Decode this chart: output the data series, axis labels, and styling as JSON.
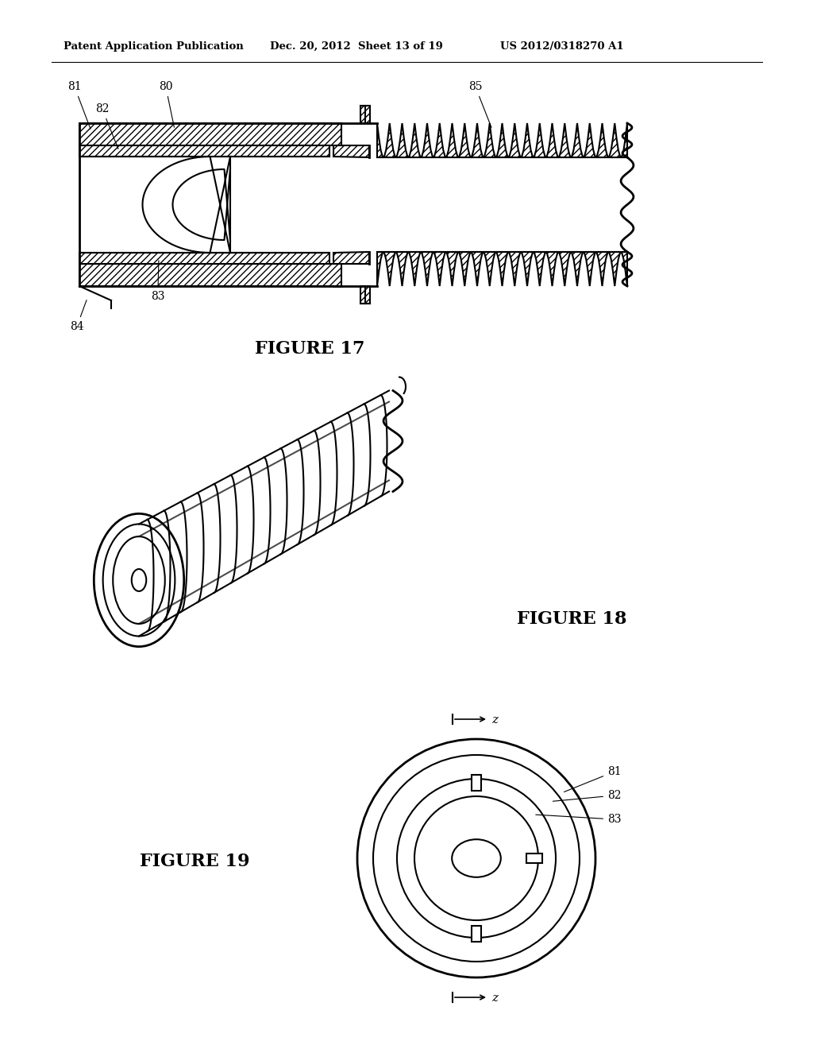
{
  "header_left": "Patent Application Publication",
  "header_mid": "Dec. 20, 2012  Sheet 13 of 19",
  "header_right": "US 2012/0318270 A1",
  "fig17_title": "FIGURE 17",
  "fig18_title": "FIGURE 18",
  "fig19_title": "FIGURE 19",
  "bg_color": "#ffffff",
  "line_color": "#000000"
}
